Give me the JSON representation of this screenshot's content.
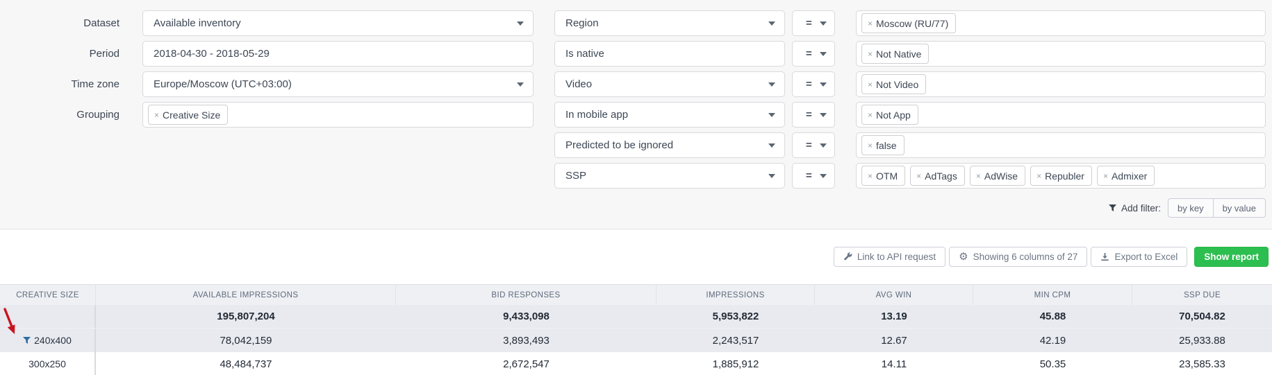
{
  "filters": {
    "left_fields": [
      {
        "label": "Dataset",
        "type": "select",
        "value": "Available inventory"
      },
      {
        "label": "Period",
        "type": "text",
        "value": "2018-04-30 - 2018-05-29"
      },
      {
        "label": "Time zone",
        "type": "select",
        "value": "Europe/Moscow (UTC+03:00)"
      },
      {
        "label": "Grouping",
        "type": "tags",
        "tags": [
          "Creative Size"
        ]
      }
    ],
    "conditions": [
      {
        "key": "Region",
        "key_caret": true,
        "op": "=",
        "values": [
          "Moscow (RU/77)"
        ]
      },
      {
        "key": "Is native",
        "key_caret": false,
        "op": "=",
        "values": [
          "Not Native"
        ]
      },
      {
        "key": "Video",
        "key_caret": true,
        "op": "=",
        "values": [
          "Not Video"
        ]
      },
      {
        "key": "In mobile app",
        "key_caret": true,
        "op": "=",
        "values": [
          "Not App"
        ]
      },
      {
        "key": "Predicted to be ignored",
        "key_caret": true,
        "op": "=",
        "values": [
          "false"
        ]
      },
      {
        "key": "SSP",
        "key_caret": true,
        "op": "=",
        "values": [
          "OTM",
          "AdTags",
          "AdWise",
          "Republer",
          "Admixer"
        ]
      }
    ],
    "add_filter": {
      "label": "Add filter:",
      "by_key": "by key",
      "by_value": "by value"
    }
  },
  "toolbar": {
    "link_api": "Link to API request",
    "columns_info": "Showing 6 columns of 27",
    "export_excel": "Export to Excel",
    "show_report": "Show report"
  },
  "table": {
    "columns": [
      "CREATIVE SIZE",
      "AVAILABLE IMPRESSIONS",
      "BID RESPONSES",
      "IMPRESSIONS",
      "AVG WIN",
      "MIN CPM",
      "SSP DUE"
    ],
    "rows": [
      {
        "creative_size": "",
        "is_totals": true,
        "shaded": true,
        "has_filter_icon": false,
        "values": [
          "195,807,204",
          "9,433,098",
          "5,953,822",
          "13.19",
          "45.88",
          "70,504.82"
        ]
      },
      {
        "creative_size": "240x400",
        "is_totals": false,
        "shaded": true,
        "has_filter_icon": true,
        "values": [
          "78,042,159",
          "3,893,493",
          "2,243,517",
          "12.67",
          "42.19",
          "25,933.88"
        ]
      },
      {
        "creative_size": "300x250",
        "is_totals": false,
        "shaded": false,
        "has_filter_icon": false,
        "values": [
          "48,484,737",
          "2,672,547",
          "1,885,912",
          "14.11",
          "50.35",
          "23,585.33"
        ]
      }
    ]
  },
  "colors": {
    "show_report_green": "#2dbe50",
    "row_filter_blue": "#2e6da4",
    "annotation_red": "#c8151d"
  }
}
